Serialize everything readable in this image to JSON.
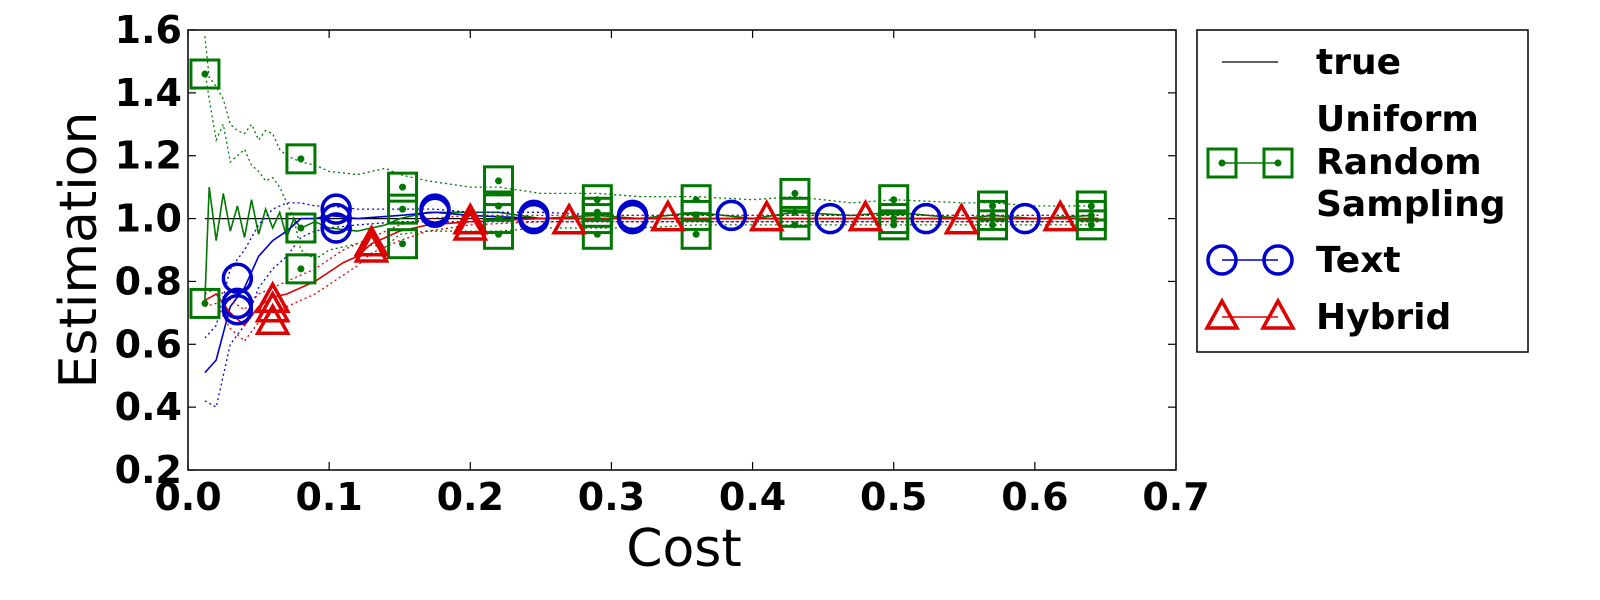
{
  "chart_data": {
    "type": "line",
    "title": "",
    "xlabel": "Cost",
    "ylabel": "Estimation",
    "xlim": [
      0.0,
      0.7
    ],
    "ylim": [
      0.2,
      1.6
    ],
    "xticks": [
      "0.0",
      "0.1",
      "0.2",
      "0.3",
      "0.4",
      "0.5",
      "0.6",
      "0.7"
    ],
    "yticks": [
      "0.2",
      "0.4",
      "0.6",
      "0.8",
      "1.0",
      "1.2",
      "1.4",
      "1.6"
    ],
    "grid": false,
    "legend_position": "outside-right",
    "series": [
      {
        "name": "true",
        "color": "#000000",
        "marker": "none",
        "x": [
          0.012,
          0.645
        ],
        "y": [
          1.0,
          1.0
        ]
      },
      {
        "name": "Uniform Random Sampling",
        "color": "#007700",
        "marker": "square",
        "x": [
          0.012,
          0.015,
          0.02,
          0.025,
          0.03,
          0.035,
          0.04,
          0.045,
          0.05,
          0.055,
          0.06,
          0.065,
          0.07,
          0.075,
          0.08,
          0.09,
          0.1,
          0.12,
          0.14,
          0.15,
          0.17,
          0.2,
          0.22,
          0.25,
          0.29,
          0.32,
          0.36,
          0.4,
          0.43,
          0.47,
          0.5,
          0.55,
          0.57,
          0.6,
          0.64
        ],
        "y": [
          0.74,
          1.1,
          0.93,
          1.08,
          0.96,
          1.04,
          0.94,
          1.06,
          0.95,
          1.03,
          0.97,
          1.02,
          0.94,
          1.0,
          0.97,
          0.99,
          0.97,
          0.96,
          0.98,
          1.0,
          1.02,
          1.02,
          1.02,
          1.0,
          1.01,
          1.0,
          1.02,
          1.0,
          1.02,
          1.01,
          1.02,
          1.0,
          1.01,
          1.0,
          1.01
        ],
        "band_upper": [
          1.58,
          1.45,
          1.42,
          1.38,
          1.3,
          1.28,
          1.27,
          1.3,
          1.25,
          1.28,
          1.27,
          1.22,
          1.2,
          1.19,
          1.18,
          1.17,
          1.15,
          1.14,
          1.16,
          1.14,
          1.12,
          1.1,
          1.1,
          1.08,
          1.08,
          1.07,
          1.07,
          1.06,
          1.07,
          1.05,
          1.06,
          1.05,
          1.05,
          1.04,
          1.04
        ],
        "band_lower": [
          1.47,
          1.38,
          1.25,
          1.3,
          1.18,
          1.2,
          1.22,
          1.17,
          1.15,
          1.12,
          1.13,
          1.1,
          1.05,
          1.0,
          0.9,
          0.87,
          0.9,
          0.92,
          0.91,
          0.95,
          0.96,
          0.96,
          0.96,
          0.97,
          0.97,
          0.97,
          0.98,
          0.98,
          0.98,
          0.98,
          0.98,
          0.98,
          0.98,
          0.98,
          0.98
        ],
        "marker_points": [
          [
            0.012,
            1.46
          ],
          [
            0.012,
            0.73
          ],
          [
            0.08,
            1.19
          ],
          [
            0.08,
            0.97
          ],
          [
            0.08,
            0.84
          ],
          [
            0.152,
            1.1
          ],
          [
            0.152,
            1.03
          ],
          [
            0.152,
            0.92
          ],
          [
            0.22,
            1.12
          ],
          [
            0.22,
            1.04
          ],
          [
            0.22,
            1.0
          ],
          [
            0.22,
            0.95
          ],
          [
            0.29,
            1.06
          ],
          [
            0.29,
            1.02
          ],
          [
            0.29,
            1.0
          ],
          [
            0.29,
            0.95
          ],
          [
            0.36,
            1.06
          ],
          [
            0.36,
            1.01
          ],
          [
            0.36,
            0.95
          ],
          [
            0.43,
            1.08
          ],
          [
            0.43,
            1.02
          ],
          [
            0.43,
            0.98
          ],
          [
            0.5,
            1.06
          ],
          [
            0.5,
            1.0
          ],
          [
            0.5,
            0.98
          ],
          [
            0.57,
            1.04
          ],
          [
            0.57,
            1.01
          ],
          [
            0.57,
            0.98
          ],
          [
            0.64,
            1.04
          ],
          [
            0.64,
            1.01
          ],
          [
            0.64,
            0.98
          ]
        ]
      },
      {
        "name": "Text",
        "color": "#0000cc",
        "marker": "circle",
        "x": [
          0.012,
          0.02,
          0.03,
          0.04,
          0.05,
          0.06,
          0.07,
          0.08,
          0.09,
          0.1,
          0.12,
          0.15,
          0.175,
          0.2,
          0.25,
          0.3,
          0.4,
          0.5,
          0.6,
          0.645
        ],
        "y": [
          0.51,
          0.55,
          0.72,
          0.78,
          0.88,
          0.93,
          0.96,
          1.0,
          1.0,
          1.01,
          1.0,
          1.01,
          1.02,
          1.01,
          1.0,
          1.0,
          1.0,
          1.0,
          1.0,
          1.0
        ],
        "band_upper": [
          0.62,
          0.66,
          0.84,
          0.9,
          0.98,
          1.03,
          1.05,
          1.05,
          1.04,
          1.04,
          1.03,
          1.03,
          1.03,
          1.02,
          1.02,
          1.01,
          1.01,
          1.01,
          1.01,
          1.01
        ],
        "band_lower": [
          0.42,
          0.4,
          0.6,
          0.66,
          0.78,
          0.84,
          0.88,
          0.94,
          0.96,
          0.97,
          0.98,
          0.99,
          0.99,
          0.99,
          0.99,
          0.99,
          0.99,
          0.99,
          0.99,
          0.99
        ],
        "marker_points": [
          [
            0.035,
            0.81
          ],
          [
            0.035,
            0.73
          ],
          [
            0.035,
            0.71
          ],
          [
            0.105,
            1.03
          ],
          [
            0.105,
            1.0
          ],
          [
            0.105,
            0.97
          ],
          [
            0.175,
            1.03
          ],
          [
            0.175,
            1.02
          ],
          [
            0.245,
            1.01
          ],
          [
            0.245,
            1.0
          ],
          [
            0.315,
            1.01
          ],
          [
            0.315,
            1.0
          ],
          [
            0.385,
            1.01
          ],
          [
            0.455,
            1.0
          ],
          [
            0.523,
            1.0
          ],
          [
            0.593,
            1.0
          ]
        ]
      },
      {
        "name": "Hybrid",
        "color": "#dd0000",
        "marker": "triangle",
        "x": [
          0.012,
          0.02,
          0.03,
          0.04,
          0.05,
          0.06,
          0.07,
          0.08,
          0.09,
          0.1,
          0.11,
          0.12,
          0.13,
          0.15,
          0.17,
          0.2,
          0.25,
          0.3,
          0.4,
          0.5,
          0.6,
          0.645
        ],
        "y": [
          0.74,
          0.76,
          0.7,
          0.66,
          0.72,
          0.75,
          0.76,
          0.78,
          0.8,
          0.83,
          0.86,
          0.88,
          0.92,
          0.96,
          0.98,
          0.99,
          1.0,
          1.0,
          1.0,
          1.0,
          1.0,
          1.0
        ],
        "band_upper": [
          0.76,
          0.78,
          0.74,
          0.71,
          0.76,
          0.78,
          0.8,
          0.82,
          0.84,
          0.87,
          0.9,
          0.92,
          0.94,
          0.98,
          1.0,
          1.01,
          1.01,
          1.01,
          1.01,
          1.01,
          1.01,
          1.01
        ],
        "band_lower": [
          0.72,
          0.73,
          0.65,
          0.61,
          0.67,
          0.7,
          0.72,
          0.74,
          0.76,
          0.79,
          0.82,
          0.85,
          0.89,
          0.93,
          0.96,
          0.98,
          0.99,
          0.99,
          0.99,
          0.99,
          0.99,
          0.99
        ],
        "marker_points": [
          [
            0.06,
            0.74
          ],
          [
            0.06,
            0.71
          ],
          [
            0.06,
            0.67
          ],
          [
            0.13,
            0.92
          ],
          [
            0.13,
            0.9
          ],
          [
            0.2,
            0.99
          ],
          [
            0.2,
            0.97
          ],
          [
            0.27,
            0.99
          ],
          [
            0.34,
            1.0
          ],
          [
            0.41,
            1.0
          ],
          [
            0.48,
            1.0
          ],
          [
            0.548,
            0.99
          ],
          [
            0.618,
            1.0
          ]
        ]
      }
    ],
    "legend_labels": [
      "true",
      "Uniform",
      "Random",
      "Sampling",
      "Text",
      "Hybrid"
    ]
  }
}
